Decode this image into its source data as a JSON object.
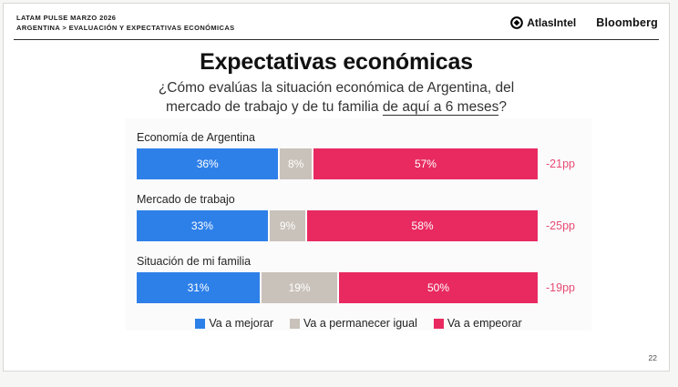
{
  "header": {
    "line1": "LATAM PULSE MARZO 2026",
    "line2": "ARGENTINA > EVALUACIÓN Y EXPECTATIVAS ECONÓMICAS",
    "brand_atlas": "AtlasIntel",
    "brand_bloomberg": "Bloomberg"
  },
  "title": "Expectativas económicas",
  "subtitle": {
    "line1": "¿Cómo evalúas la situación económica de Argentina, del",
    "line2_before": "mercado de trabajo y de tu familia ",
    "line2_underlined": "de aquí a 6 meses",
    "line2_after": "?"
  },
  "page_number": "22",
  "colors": {
    "improve_blue": "#2e80e9",
    "same_gray": "#c9c2ba",
    "worsen_pink": "#e82a60",
    "delta_text": "#e94b72"
  },
  "chart_data": {
    "type": "bar",
    "orientation": "horizontal_stacked",
    "title": "Expectativas económicas",
    "categories": [
      "Economía de Argentina",
      "Mercado de trabajo",
      "Situación de mi familia"
    ],
    "series": [
      {
        "name": "Va a mejorar",
        "color": "#2e80e9",
        "values": [
          36,
          33,
          31
        ]
      },
      {
        "name": "Va a permanecer igual",
        "color": "#c9c2ba",
        "values": [
          8,
          9,
          19
        ]
      },
      {
        "name": "Va a empeorar",
        "color": "#e82a60",
        "values": [
          57,
          58,
          50
        ]
      }
    ],
    "deltas": [
      "-21pp",
      "-25pp",
      "-19pp"
    ],
    "value_suffix": "%",
    "xlim": [
      0,
      100
    ],
    "grid": false,
    "legend_position": "bottom"
  }
}
